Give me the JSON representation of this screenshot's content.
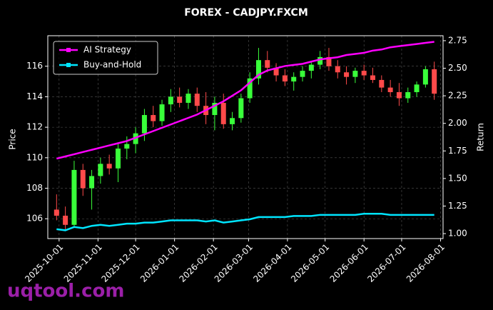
{
  "chart_data": {
    "type": "candlestick",
    "title": "FOREX - CADJPY.FXCM",
    "ylabel": "Price",
    "y2label": "Return",
    "watermark": "uqtool.com",
    "up_color": "#39ff3a",
    "down_color": "#ff4a4a",
    "grid": true,
    "legend": "upper left",
    "x": [
      "2025-09-29",
      "2025-10-06",
      "2025-10-13",
      "2025-10-20",
      "2025-10-27",
      "2025-11-03",
      "2025-11-10",
      "2025-11-17",
      "2025-11-24",
      "2025-12-01",
      "2025-12-08",
      "2025-12-15",
      "2025-12-22",
      "2025-12-29",
      "2026-01-05",
      "2026-01-12",
      "2026-01-19",
      "2026-01-26",
      "2026-02-02",
      "2026-02-09",
      "2026-02-16",
      "2026-02-23",
      "2026-03-02",
      "2026-03-09",
      "2026-03-16",
      "2026-03-23",
      "2026-03-30",
      "2026-04-06",
      "2026-04-13",
      "2026-04-20",
      "2026-04-27",
      "2026-05-04",
      "2026-05-11",
      "2026-05-18",
      "2026-05-25",
      "2026-06-01",
      "2026-06-08",
      "2026-06-15",
      "2026-06-22",
      "2026-06-29",
      "2026-07-06",
      "2026-07-13",
      "2026-07-20",
      "2026-07-27"
    ],
    "open": [
      106.6,
      106.2,
      105.6,
      109.2,
      108.0,
      108.8,
      109.6,
      109.3,
      110.6,
      110.9,
      111.6,
      112.8,
      112.4,
      113.5,
      114.0,
      113.6,
      114.2,
      113.4,
      112.8,
      113.6,
      112.2,
      112.6,
      113.9,
      115.2,
      116.4,
      115.9,
      115.4,
      115.0,
      115.3,
      115.7,
      116.1,
      116.6,
      116.0,
      115.6,
      115.3,
      115.7,
      115.4,
      115.1,
      114.6,
      114.3,
      113.9,
      114.3,
      114.8,
      115.8
    ],
    "high": [
      107.6,
      106.8,
      109.8,
      109.6,
      109.2,
      110.0,
      110.2,
      111.0,
      111.4,
      112.0,
      113.2,
      113.4,
      113.8,
      114.5,
      114.6,
      114.5,
      114.6,
      114.3,
      114.0,
      114.2,
      113.0,
      114.2,
      115.6,
      117.2,
      117.0,
      116.2,
      115.8,
      115.6,
      116.0,
      116.3,
      117.0,
      117.2,
      116.4,
      116.0,
      115.9,
      116.1,
      115.9,
      115.4,
      115.1,
      114.9,
      114.6,
      115.0,
      116.0,
      116.3
    ],
    "low": [
      105.9,
      105.3,
      105.4,
      107.5,
      106.6,
      108.3,
      108.9,
      108.4,
      109.9,
      110.3,
      111.1,
      112.0,
      112.1,
      113.0,
      113.3,
      113.2,
      113.0,
      112.2,
      111.8,
      111.9,
      111.8,
      112.3,
      113.6,
      114.8,
      115.6,
      115.0,
      114.7,
      114.4,
      115.0,
      115.2,
      115.8,
      115.7,
      115.2,
      114.8,
      114.9,
      115.1,
      114.9,
      114.3,
      114.0,
      113.4,
      113.6,
      114.0,
      114.6,
      113.8
    ],
    "close": [
      106.2,
      105.6,
      109.2,
      108.0,
      108.8,
      109.6,
      109.3,
      110.6,
      110.9,
      111.6,
      112.8,
      112.4,
      113.5,
      114.0,
      113.6,
      114.2,
      113.4,
      112.8,
      113.6,
      112.2,
      112.6,
      113.9,
      115.2,
      116.4,
      115.9,
      115.4,
      115.0,
      115.3,
      115.7,
      116.1,
      116.6,
      116.0,
      115.6,
      115.3,
      115.7,
      115.4,
      115.1,
      114.6,
      114.3,
      113.9,
      114.3,
      114.8,
      115.8,
      114.2
    ],
    "series": [
      {
        "name": "AI Strategy",
        "color": "#ff00ff",
        "axis": "y2",
        "values": [
          1.68,
          1.7,
          1.72,
          1.74,
          1.76,
          1.78,
          1.8,
          1.82,
          1.84,
          1.87,
          1.9,
          1.93,
          1.96,
          1.99,
          2.02,
          2.05,
          2.08,
          2.12,
          2.16,
          2.2,
          2.25,
          2.3,
          2.37,
          2.44,
          2.48,
          2.5,
          2.52,
          2.53,
          2.54,
          2.56,
          2.58,
          2.59,
          2.6,
          2.62,
          2.63,
          2.64,
          2.66,
          2.67,
          2.69,
          2.7,
          2.71,
          2.72,
          2.73,
          2.74
        ]
      },
      {
        "name": "Buy-and-Hold",
        "color": "#00e5ff",
        "axis": "y2",
        "values": [
          1.04,
          1.03,
          1.06,
          1.05,
          1.07,
          1.08,
          1.07,
          1.08,
          1.09,
          1.09,
          1.1,
          1.1,
          1.11,
          1.12,
          1.12,
          1.12,
          1.12,
          1.11,
          1.12,
          1.1,
          1.11,
          1.12,
          1.13,
          1.15,
          1.15,
          1.15,
          1.15,
          1.16,
          1.16,
          1.16,
          1.17,
          1.17,
          1.17,
          1.17,
          1.17,
          1.18,
          1.18,
          1.18,
          1.17,
          1.17,
          1.17,
          1.17,
          1.17,
          1.17
        ]
      }
    ],
    "xlim": [
      "2025-09-22",
      "2026-08-03"
    ],
    "xticks": [
      "2025-10-01",
      "2025-11-01",
      "2025-12-01",
      "2026-01-01",
      "2026-02-01",
      "2026-03-01",
      "2026-04-01",
      "2026-05-01",
      "2026-06-01",
      "2026-07-01",
      "2026-08-01"
    ],
    "ylim": [
      104.7,
      118.0
    ],
    "yticks": [
      106,
      108,
      110,
      112,
      114,
      116
    ],
    "y2lim": [
      0.955,
      2.795
    ],
    "y2ticks": [
      {
        "value": 1,
        "label": "1.00"
      },
      1.25,
      {
        "value": 1.5,
        "label": "1.50"
      },
      1.75,
      {
        "value": 2,
        "label": "2.00"
      },
      2.25,
      {
        "value": 2.5,
        "label": "2.50"
      },
      2.75
    ]
  }
}
